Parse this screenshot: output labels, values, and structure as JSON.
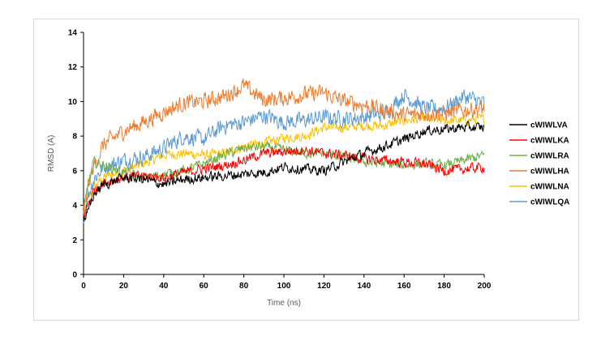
{
  "chart_data": {
    "type": "line",
    "title": "",
    "xlabel": "Time (ns)",
    "ylabel": "RMSD (A)",
    "xlim": [
      0,
      200
    ],
    "ylim": [
      0,
      14
    ],
    "xticks": [
      0,
      20,
      40,
      60,
      80,
      100,
      120,
      140,
      160,
      180,
      200
    ],
    "yticks": [
      0,
      2,
      4,
      6,
      8,
      10,
      12,
      14
    ],
    "grid": false,
    "legend_position": "right",
    "series": [
      {
        "name": "cWIWLVA",
        "color": "#000000",
        "x": [
          0,
          2,
          5,
          10,
          20,
          30,
          40,
          50,
          60,
          70,
          80,
          90,
          100,
          110,
          120,
          130,
          140,
          150,
          160,
          170,
          180,
          190,
          200
        ],
        "y": [
          3.2,
          3.5,
          4.6,
          5.2,
          5.6,
          5.5,
          5.2,
          5.5,
          5.6,
          5.7,
          5.8,
          5.9,
          6.2,
          6.1,
          6.0,
          6.5,
          7.0,
          7.4,
          7.8,
          8.3,
          8.4,
          8.5,
          8.5
        ]
      },
      {
        "name": "cWIWLKA",
        "color": "#ff0000",
        "x": [
          0,
          2,
          5,
          10,
          20,
          30,
          40,
          50,
          60,
          70,
          80,
          90,
          100,
          110,
          120,
          130,
          140,
          150,
          160,
          170,
          180,
          190,
          200
        ],
        "y": [
          3.4,
          4.0,
          4.8,
          5.3,
          5.6,
          5.7,
          5.6,
          5.9,
          6.1,
          6.3,
          6.6,
          7.0,
          7.1,
          7.2,
          7.0,
          6.9,
          6.7,
          6.6,
          6.5,
          6.4,
          6.0,
          6.1,
          6.2
        ]
      },
      {
        "name": "cWIWLRA",
        "color": "#70ad47",
        "x": [
          0,
          2,
          5,
          10,
          20,
          30,
          40,
          50,
          60,
          70,
          80,
          90,
          100,
          110,
          120,
          130,
          140,
          150,
          160,
          170,
          180,
          190,
          200
        ],
        "y": [
          3.5,
          5.0,
          6.5,
          6.3,
          5.9,
          5.6,
          5.8,
          6.0,
          6.4,
          6.9,
          7.3,
          7.4,
          7.2,
          7.0,
          7.0,
          6.8,
          6.5,
          6.4,
          6.3,
          6.4,
          6.3,
          6.6,
          6.9
        ]
      },
      {
        "name": "cWIWLHA",
        "color": "#ed7d31",
        "x": [
          0,
          2,
          5,
          10,
          20,
          30,
          40,
          50,
          60,
          70,
          80,
          90,
          100,
          110,
          120,
          130,
          140,
          150,
          160,
          170,
          180,
          190,
          200
        ],
        "y": [
          3.6,
          5.0,
          6.2,
          7.5,
          8.3,
          8.8,
          9.4,
          9.9,
          10.0,
          10.3,
          10.9,
          10.1,
          10.2,
          10.4,
          10.5,
          10.0,
          9.8,
          9.5,
          9.2,
          9.3,
          9.3,
          9.5,
          9.6
        ]
      },
      {
        "name": "cWIWLNA",
        "color": "#ffc000",
        "x": [
          0,
          2,
          5,
          10,
          20,
          30,
          40,
          50,
          60,
          70,
          80,
          90,
          100,
          110,
          120,
          130,
          140,
          150,
          160,
          170,
          180,
          190,
          200
        ],
        "y": [
          3.5,
          4.2,
          5.0,
          5.6,
          6.0,
          6.4,
          6.9,
          7.0,
          6.9,
          7.0,
          7.4,
          7.6,
          7.9,
          8.0,
          8.5,
          8.5,
          8.6,
          8.6,
          8.9,
          9.0,
          8.9,
          8.9,
          9.0
        ]
      },
      {
        "name": "cWIWLQA",
        "color": "#5b9bd5",
        "x": [
          0,
          2,
          5,
          10,
          20,
          30,
          40,
          50,
          60,
          70,
          80,
          90,
          100,
          110,
          120,
          130,
          140,
          150,
          160,
          170,
          180,
          190,
          200
        ],
        "y": [
          3.0,
          4.5,
          5.5,
          6.2,
          6.6,
          6.8,
          7.3,
          8.0,
          7.8,
          8.6,
          8.8,
          9.2,
          8.8,
          8.9,
          9.1,
          9.0,
          9.1,
          9.3,
          10.4,
          9.6,
          9.6,
          10.3,
          9.9
        ]
      }
    ]
  }
}
